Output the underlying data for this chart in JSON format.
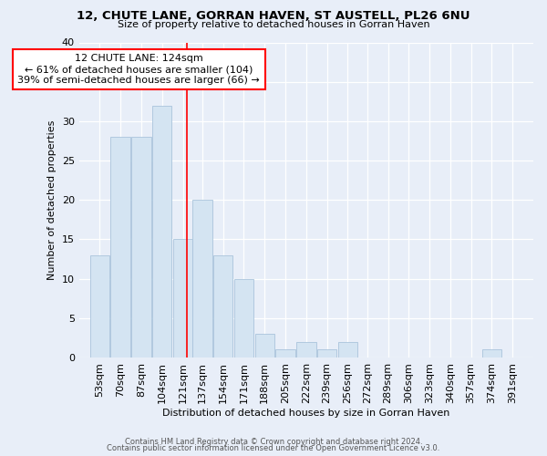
{
  "title": "12, CHUTE LANE, GORRAN HAVEN, ST AUSTELL, PL26 6NU",
  "subtitle": "Size of property relative to detached houses in Gorran Haven",
  "xlabel": "Distribution of detached houses by size in Gorran Haven",
  "ylabel": "Number of detached properties",
  "bin_centers": [
    53,
    70,
    87,
    104,
    121,
    137,
    154,
    171,
    188,
    205,
    222,
    239,
    256,
    272,
    289,
    306,
    323,
    340,
    357,
    374,
    391
  ],
  "bar_heights": [
    13,
    28,
    28,
    32,
    15,
    20,
    13,
    10,
    3,
    1,
    2,
    1,
    2,
    0,
    0,
    0,
    0,
    0,
    0,
    1,
    0
  ],
  "bar_facecolor": "#d4e4f2",
  "bar_edgecolor": "#aac4dc",
  "vline_x": 124,
  "vline_color": "red",
  "annotation_text": "12 CHUTE LANE: 124sqm\n← 61% of detached houses are smaller (104)\n39% of semi-detached houses are larger (66) →",
  "annotation_box_edgecolor": "red",
  "annotation_box_facecolor": "white",
  "ylim": [
    0,
    40
  ],
  "yticks": [
    0,
    5,
    10,
    15,
    20,
    25,
    30,
    35,
    40
  ],
  "bg_color": "#e8eef8",
  "footer_line1": "Contains HM Land Registry data © Crown copyright and database right 2024.",
  "footer_line2": "Contains public sector information licensed under the Open Government Licence v3.0.",
  "tick_labels": [
    "53sqm",
    "70sqm",
    "87sqm",
    "104sqm",
    "121sqm",
    "137sqm",
    "154sqm",
    "171sqm",
    "188sqm",
    "205sqm",
    "222sqm",
    "239sqm",
    "256sqm",
    "272sqm",
    "289sqm",
    "306sqm",
    "323sqm",
    "340sqm",
    "357sqm",
    "374sqm",
    "391sqm"
  ],
  "bar_spacing": 17
}
